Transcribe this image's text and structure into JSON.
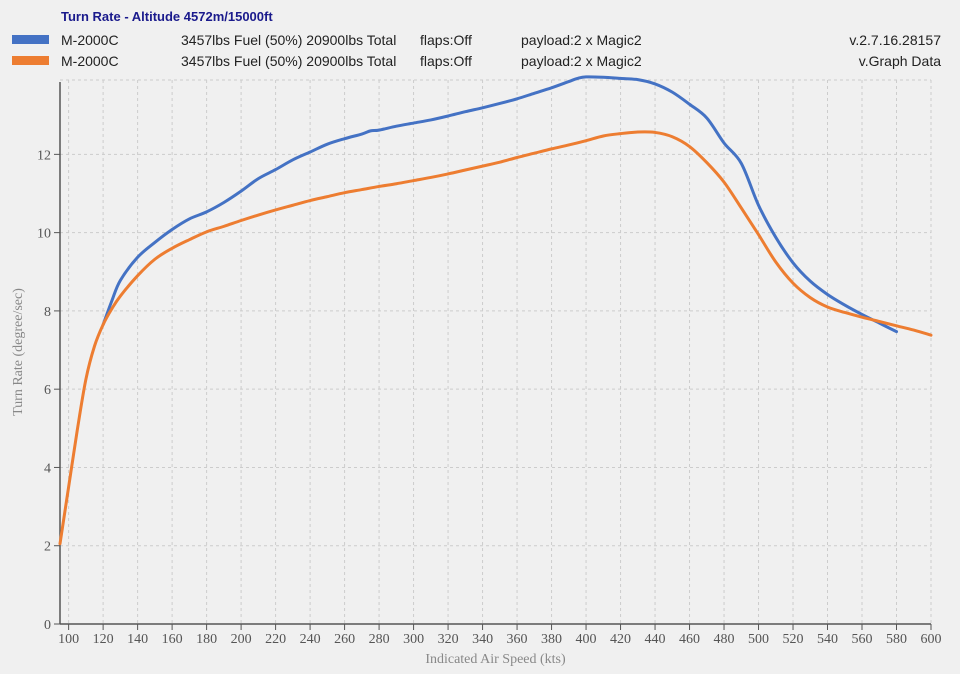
{
  "chart_data": {
    "type": "line",
    "title": "Turn Rate - Altitude 4572m/15000ft",
    "xlabel": "Indicated Air Speed (kts)",
    "ylabel": "Turn Rate (degree/sec)",
    "xlim": [
      95,
      600
    ],
    "ylim": [
      0,
      13.9
    ],
    "x_ticks": [
      100,
      120,
      140,
      160,
      180,
      200,
      220,
      240,
      260,
      280,
      300,
      320,
      340,
      360,
      380,
      400,
      420,
      440,
      460,
      480,
      500,
      520,
      540,
      560,
      580,
      600
    ],
    "y_ticks": [
      0,
      2,
      4,
      6,
      8,
      10,
      12
    ],
    "grid": true,
    "legend_position": "top",
    "series": [
      {
        "name": "M-2000C",
        "color": "#4472c4",
        "fuel": "3457lbs Fuel (50%) 20900lbs Total",
        "flaps": "flaps:Off",
        "payload": "payload:2 x Magic2",
        "extra": "v.2.7.16.28157",
        "x": [
          120,
          125,
          130,
          140,
          150,
          160,
          170,
          180,
          190,
          200,
          210,
          220,
          230,
          240,
          250,
          260,
          270,
          275,
          280,
          290,
          300,
          310,
          320,
          330,
          340,
          350,
          360,
          370,
          380,
          390,
          395,
          400,
          410,
          420,
          430,
          440,
          450,
          460,
          470,
          480,
          490,
          500,
          510,
          520,
          530,
          540,
          550,
          560,
          570,
          580
        ],
        "y": [
          7.65,
          8.25,
          8.78,
          9.37,
          9.75,
          10.08,
          10.35,
          10.53,
          10.77,
          11.06,
          11.38,
          11.61,
          11.86,
          12.06,
          12.26,
          12.4,
          12.52,
          12.6,
          12.62,
          12.72,
          12.8,
          12.88,
          12.98,
          13.09,
          13.19,
          13.3,
          13.42,
          13.56,
          13.7,
          13.86,
          13.94,
          13.98,
          13.97,
          13.94,
          13.91,
          13.8,
          13.59,
          13.28,
          12.93,
          12.29,
          11.77,
          10.7,
          9.88,
          9.23,
          8.76,
          8.42,
          8.15,
          7.91,
          7.69,
          7.47
        ]
      },
      {
        "name": "M-2000C",
        "color": "#ed7d31",
        "fuel": "3457lbs Fuel (50%) 20900lbs Total",
        "flaps": "flaps:Off",
        "payload": "payload:2 x Magic2",
        "extra": "v.Graph Data",
        "x": [
          95,
          100,
          105,
          110,
          115,
          120,
          125,
          130,
          140,
          150,
          160,
          170,
          180,
          190,
          200,
          210,
          220,
          230,
          240,
          250,
          260,
          270,
          280,
          290,
          300,
          310,
          320,
          330,
          340,
          350,
          360,
          370,
          380,
          390,
          400,
          410,
          420,
          430,
          440,
          450,
          460,
          470,
          480,
          490,
          500,
          510,
          520,
          530,
          540,
          550,
          560,
          570,
          580,
          590,
          600
        ],
        "y": [
          2.05,
          3.5,
          4.95,
          6.25,
          7.1,
          7.65,
          8.05,
          8.38,
          8.9,
          9.32,
          9.6,
          9.82,
          10.02,
          10.16,
          10.31,
          10.45,
          10.58,
          10.7,
          10.82,
          10.92,
          11.02,
          11.1,
          11.18,
          11.25,
          11.33,
          11.41,
          11.5,
          11.6,
          11.7,
          11.8,
          11.92,
          12.03,
          12.14,
          12.24,
          12.35,
          12.47,
          12.53,
          12.57,
          12.56,
          12.45,
          12.2,
          11.79,
          11.29,
          10.63,
          9.95,
          9.25,
          8.71,
          8.34,
          8.1,
          7.96,
          7.84,
          7.73,
          7.62,
          7.51,
          7.38
        ]
      }
    ]
  }
}
